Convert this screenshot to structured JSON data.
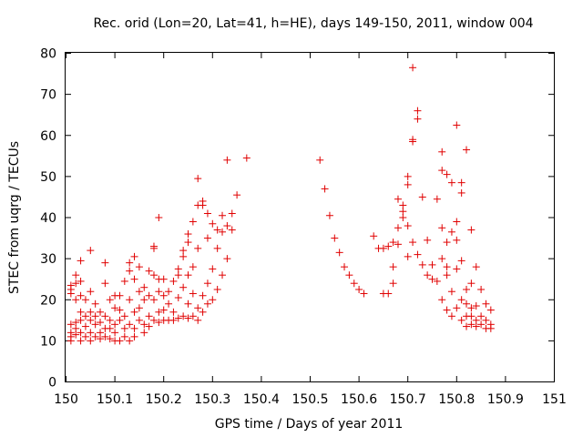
{
  "chart_data": {
    "type": "scatter",
    "title": "Rec. orid (Lon=20, Lat=41, h=HE), days 149-150, 2011, window 004",
    "xlabel": "GPS time / Days of year 2011",
    "ylabel": "STEC from uqrg / TECUs",
    "xlim": [
      150,
      151
    ],
    "ylim": [
      0,
      80
    ],
    "x_ticks": [
      "150",
      "150.1",
      "150.2",
      "150.3",
      "150.4",
      "150.5",
      "150.6",
      "150.7",
      "150.8",
      "150.9",
      "151"
    ],
    "y_ticks": [
      "0",
      "10",
      "20",
      "30",
      "40",
      "50",
      "60",
      "70",
      "80"
    ],
    "grid": false,
    "legend": "none",
    "marker": "plus",
    "colors": {
      "series": "#e00000"
    },
    "series": [
      {
        "points": [
          [
            150.01,
            22.5
          ],
          [
            150.01,
            21.5
          ],
          [
            150.01,
            23.5
          ],
          [
            150.01,
            14
          ],
          [
            150.01,
            12
          ],
          [
            150.01,
            11
          ],
          [
            150.01,
            10
          ],
          [
            150.02,
            26
          ],
          [
            150.02,
            24
          ],
          [
            150.02,
            20
          ],
          [
            150.02,
            13
          ],
          [
            150.02,
            11.5
          ],
          [
            150.02,
            14.5
          ],
          [
            150.03,
            29.5
          ],
          [
            150.03,
            24.5
          ],
          [
            150.03,
            21
          ],
          [
            150.03,
            17
          ],
          [
            150.03,
            15
          ],
          [
            150.03,
            12
          ],
          [
            150.03,
            10
          ],
          [
            150.04,
            20
          ],
          [
            150.04,
            16
          ],
          [
            150.04,
            13.5
          ],
          [
            150.04,
            11
          ],
          [
            150.05,
            32
          ],
          [
            150.05,
            22
          ],
          [
            150.05,
            17
          ],
          [
            150.05,
            15
          ],
          [
            150.05,
            12
          ],
          [
            150.05,
            10
          ],
          [
            150.06,
            19
          ],
          [
            150.06,
            16
          ],
          [
            150.06,
            14
          ],
          [
            150.06,
            11
          ],
          [
            150.07,
            17
          ],
          [
            150.07,
            14.5
          ],
          [
            150.07,
            12
          ],
          [
            150.07,
            10.5
          ],
          [
            150.08,
            29
          ],
          [
            150.08,
            24
          ],
          [
            150.08,
            16
          ],
          [
            150.08,
            13
          ],
          [
            150.08,
            11
          ],
          [
            150.09,
            20
          ],
          [
            150.09,
            15
          ],
          [
            150.09,
            13
          ],
          [
            150.09,
            10.5
          ],
          [
            150.1,
            21
          ],
          [
            150.1,
            18
          ],
          [
            150.1,
            14
          ],
          [
            150.1,
            12
          ],
          [
            150.1,
            10
          ],
          [
            150.11,
            21
          ],
          [
            150.11,
            17.5
          ],
          [
            150.11,
            15
          ],
          [
            150.11,
            10
          ],
          [
            150.12,
            24.5
          ],
          [
            150.12,
            16
          ],
          [
            150.12,
            13
          ],
          [
            150.12,
            11
          ],
          [
            150.13,
            29
          ],
          [
            150.13,
            27
          ],
          [
            150.13,
            20
          ],
          [
            150.13,
            14
          ],
          [
            150.13,
            10
          ],
          [
            150.14,
            30.5
          ],
          [
            150.14,
            25
          ],
          [
            150.14,
            17
          ],
          [
            150.14,
            13
          ],
          [
            150.14,
            11
          ],
          [
            150.15,
            28
          ],
          [
            150.15,
            22
          ],
          [
            150.15,
            18
          ],
          [
            150.15,
            15
          ],
          [
            150.16,
            23
          ],
          [
            150.16,
            20
          ],
          [
            150.16,
            14
          ],
          [
            150.16,
            12
          ],
          [
            150.17,
            27
          ],
          [
            150.17,
            21
          ],
          [
            150.17,
            16
          ],
          [
            150.17,
            13.5
          ],
          [
            150.18,
            33
          ],
          [
            150.18,
            32.5
          ],
          [
            150.18,
            26
          ],
          [
            150.18,
            20
          ],
          [
            150.18,
            15
          ],
          [
            150.19,
            40
          ],
          [
            150.19,
            25
          ],
          [
            150.19,
            22
          ],
          [
            150.19,
            17
          ],
          [
            150.19,
            14.5
          ],
          [
            150.2,
            25
          ],
          [
            150.2,
            21
          ],
          [
            150.2,
            17.5
          ],
          [
            150.2,
            15
          ],
          [
            150.21,
            22
          ],
          [
            150.21,
            19
          ],
          [
            150.21,
            15
          ],
          [
            150.22,
            24.5
          ],
          [
            150.22,
            17
          ],
          [
            150.22,
            15
          ],
          [
            150.23,
            27.5
          ],
          [
            150.23,
            26
          ],
          [
            150.23,
            20.5
          ],
          [
            150.23,
            15.5
          ],
          [
            150.24,
            32
          ],
          [
            150.24,
            30.5
          ],
          [
            150.24,
            23
          ],
          [
            150.24,
            16
          ],
          [
            150.25,
            36
          ],
          [
            150.25,
            34
          ],
          [
            150.25,
            26
          ],
          [
            150.25,
            19
          ],
          [
            150.25,
            15.5
          ],
          [
            150.26,
            39
          ],
          [
            150.26,
            28
          ],
          [
            150.26,
            21.5
          ],
          [
            150.26,
            16
          ],
          [
            150.27,
            49.5
          ],
          [
            150.27,
            43
          ],
          [
            150.27,
            32.5
          ],
          [
            150.27,
            18
          ],
          [
            150.27,
            15
          ],
          [
            150.28,
            44
          ],
          [
            150.28,
            43
          ],
          [
            150.28,
            21
          ],
          [
            150.28,
            17
          ],
          [
            150.29,
            41
          ],
          [
            150.29,
            35
          ],
          [
            150.29,
            24
          ],
          [
            150.29,
            19
          ],
          [
            150.3,
            38.5
          ],
          [
            150.3,
            27.5
          ],
          [
            150.3,
            20
          ],
          [
            150.31,
            37
          ],
          [
            150.31,
            32.5
          ],
          [
            150.31,
            22.5
          ],
          [
            150.32,
            40.5
          ],
          [
            150.32,
            36.5
          ],
          [
            150.32,
            26
          ],
          [
            150.33,
            54
          ],
          [
            150.33,
            38
          ],
          [
            150.33,
            30
          ],
          [
            150.34,
            41
          ],
          [
            150.34,
            37
          ],
          [
            150.35,
            45.5
          ],
          [
            150.37,
            54.5
          ],
          [
            150.52,
            54
          ],
          [
            150.53,
            47
          ],
          [
            150.54,
            40.5
          ],
          [
            150.55,
            35
          ],
          [
            150.56,
            31.5
          ],
          [
            150.57,
            28
          ],
          [
            150.58,
            26
          ],
          [
            150.59,
            24
          ],
          [
            150.6,
            22.5
          ],
          [
            150.61,
            21.5
          ],
          [
            150.63,
            35.5
          ],
          [
            150.64,
            32.5
          ],
          [
            150.65,
            32.5
          ],
          [
            150.66,
            33
          ],
          [
            150.67,
            34
          ],
          [
            150.67,
            28
          ],
          [
            150.65,
            21.5
          ],
          [
            150.66,
            21.5
          ],
          [
            150.67,
            24
          ],
          [
            150.68,
            44.5
          ],
          [
            150.68,
            37.5
          ],
          [
            150.68,
            33.5
          ],
          [
            150.69,
            43
          ],
          [
            150.69,
            41.5
          ],
          [
            150.69,
            40
          ],
          [
            150.7,
            50
          ],
          [
            150.7,
            48
          ],
          [
            150.7,
            38
          ],
          [
            150.7,
            30.5
          ],
          [
            150.71,
            76.5
          ],
          [
            150.71,
            59
          ],
          [
            150.71,
            58.5
          ],
          [
            150.71,
            34
          ],
          [
            150.72,
            66
          ],
          [
            150.72,
            64
          ],
          [
            150.72,
            31
          ],
          [
            150.73,
            45
          ],
          [
            150.73,
            28.5
          ],
          [
            150.74,
            34.5
          ],
          [
            150.74,
            26
          ],
          [
            150.75,
            28.5
          ],
          [
            150.75,
            25
          ],
          [
            150.76,
            44.5
          ],
          [
            150.76,
            24.5
          ],
          [
            150.77,
            56
          ],
          [
            150.77,
            51.5
          ],
          [
            150.77,
            37.5
          ],
          [
            150.77,
            30
          ],
          [
            150.77,
            20
          ],
          [
            150.78,
            50.5
          ],
          [
            150.78,
            34
          ],
          [
            150.78,
            28
          ],
          [
            150.78,
            26
          ],
          [
            150.78,
            17.5
          ],
          [
            150.79,
            48.5
          ],
          [
            150.79,
            36.5
          ],
          [
            150.79,
            22
          ],
          [
            150.79,
            16
          ],
          [
            150.8,
            62.5
          ],
          [
            150.8,
            39
          ],
          [
            150.8,
            34.5
          ],
          [
            150.8,
            27.5
          ],
          [
            150.8,
            18
          ],
          [
            150.81,
            48.5
          ],
          [
            150.81,
            46
          ],
          [
            150.81,
            29.5
          ],
          [
            150.81,
            20
          ],
          [
            150.81,
            15
          ],
          [
            150.82,
            56.5
          ],
          [
            150.82,
            22.5
          ],
          [
            150.82,
            19
          ],
          [
            150.82,
            16
          ],
          [
            150.82,
            13.5
          ],
          [
            150.83,
            37
          ],
          [
            150.83,
            24
          ],
          [
            150.83,
            18
          ],
          [
            150.83,
            16
          ],
          [
            150.83,
            14
          ],
          [
            150.84,
            28
          ],
          [
            150.84,
            18.5
          ],
          [
            150.84,
            15
          ],
          [
            150.84,
            13.5
          ],
          [
            150.85,
            22.5
          ],
          [
            150.85,
            16
          ],
          [
            150.85,
            14
          ],
          [
            150.86,
            19
          ],
          [
            150.86,
            15
          ],
          [
            150.86,
            13
          ],
          [
            150.87,
            17.5
          ],
          [
            150.87,
            14
          ],
          [
            150.87,
            13
          ]
        ]
      }
    ]
  }
}
